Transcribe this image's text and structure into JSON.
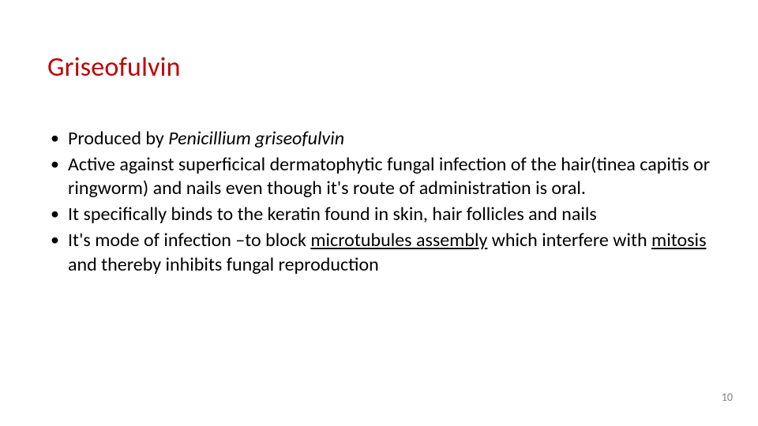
{
  "slide": {
    "title_text": "Griseofulvin",
    "title_color": "#c00000",
    "body_color": "#000000",
    "background_color": "#ffffff",
    "title_fontsize": 34,
    "body_fontsize": 24,
    "bullets": [
      {
        "pre": "Produced by ",
        "italic": "Penicillium griseofulvin",
        "post": ""
      },
      {
        "pre": "Active against superficical dermatophytic fungal infection of the hair(tinea capitis or ringworm) and nails even though it's route of administration is oral.",
        "italic": "",
        "post": ""
      },
      {
        "pre": "It specifically binds to the keratin found in skin, hair follicles and nails",
        "italic": "",
        "post": ""
      },
      {
        "pre": "It's mode of infection –to block ",
        "underline": "microtubules assembly",
        "mid": " which interfere with ",
        "underline2": "mitosis",
        "post": " and thereby inhibits fungal reproduction"
      }
    ],
    "page_number": "10",
    "pagenum_color": "#808080"
  }
}
